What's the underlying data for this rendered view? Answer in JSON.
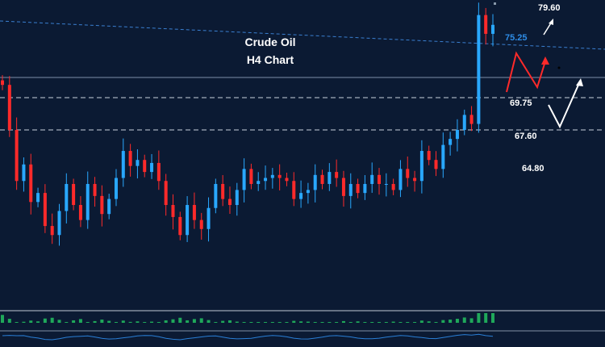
{
  "chart_data": {
    "type": "candlestick",
    "title": "Crude Oil",
    "subtitle": "H4 Chart",
    "price_levels": [
      {
        "label": "79.60",
        "value": 79.6,
        "color": "#ffffff"
      },
      {
        "label": "75.25",
        "value": 75.25,
        "color": "#2e8ce6"
      },
      {
        "label": "69.75",
        "value": 69.75,
        "color": "#ffffff"
      },
      {
        "label": "67.60",
        "value": 67.6,
        "color": "#ffffff"
      },
      {
        "label": "64.80",
        "value": 64.8,
        "color": "#ffffff"
      }
    ],
    "series": [
      {
        "values": [
          70.6,
          67.6,
          64.2,
          65.3,
          62.8,
          63.4,
          61.2,
          60.6,
          62.2,
          64.0,
          62.6,
          61.6,
          64.0,
          63.2,
          62.0,
          63.0,
          64.4,
          66.2,
          65.2,
          65.6,
          64.8,
          65.4,
          64.2,
          62.6,
          61.8,
          60.6,
          62.6,
          61.6,
          61.0,
          62.4,
          64.0,
          63.0,
          62.6,
          63.6,
          65.0,
          64.0,
          64.2,
          64.4,
          64.6,
          64.4,
          64.2,
          63.0,
          63.4,
          63.6,
          64.6,
          64.0,
          64.8,
          64.4,
          63.2,
          64.0,
          63.4,
          64.0,
          64.6,
          64.0,
          64.0,
          63.6,
          65.0,
          64.4,
          64.2,
          66.2,
          65.6,
          65.0,
          66.6,
          67.0,
          67.6,
          68.6,
          68.0,
          75.25,
          74.0,
          74.6
        ]
      }
    ],
    "up_color": "#29a8ff",
    "down_color": "#ff2a2a"
  },
  "indicator": {
    "histogram_color": "#1fa85a",
    "line_color": "#2a7fd6"
  }
}
